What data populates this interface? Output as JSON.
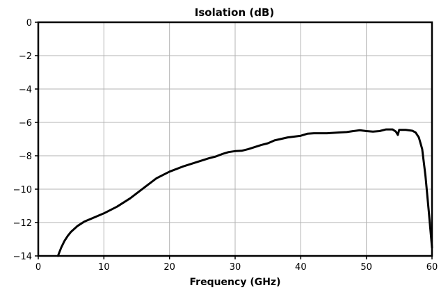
{
  "chart_data": {
    "type": "line",
    "title": "Isolation (dB)",
    "xlabel": "Frequency (GHz)",
    "ylabel": "",
    "xlim": [
      0,
      60
    ],
    "ylim": [
      -14,
      0
    ],
    "xticks": [
      0,
      10,
      20,
      30,
      40,
      50,
      60
    ],
    "yticks": [
      0,
      -2,
      -4,
      -6,
      -8,
      -10,
      -12,
      -14
    ],
    "xtick_labels": [
      "0",
      "10",
      "20",
      "30",
      "40",
      "50",
      "60"
    ],
    "ytick_labels": [
      "0",
      "−2",
      "−4",
      "−6",
      "−8",
      "−10",
      "−12",
      "−14"
    ],
    "grid": true,
    "series": [
      {
        "color": "#000000",
        "x": [
          3,
          3.5,
          4,
          4.5,
          5,
          6,
          7,
          8,
          10,
          12,
          14,
          16,
          18,
          20,
          22,
          24,
          26,
          27,
          28,
          29,
          30,
          31,
          32,
          34,
          35,
          36,
          38,
          40,
          41,
          42,
          44,
          46,
          47,
          48,
          49,
          50,
          51,
          52,
          53,
          54,
          54.5,
          54.8,
          55,
          56,
          57,
          57.5,
          58,
          58.5,
          59,
          59.5,
          60
        ],
        "y": [
          -14,
          -13.5,
          -13.1,
          -12.8,
          -12.55,
          -12.2,
          -11.95,
          -11.78,
          -11.45,
          -11.05,
          -10.55,
          -9.95,
          -9.35,
          -8.95,
          -8.65,
          -8.4,
          -8.15,
          -8.05,
          -7.9,
          -7.78,
          -7.72,
          -7.7,
          -7.6,
          -7.35,
          -7.25,
          -7.08,
          -6.9,
          -6.8,
          -6.68,
          -6.65,
          -6.65,
          -6.6,
          -6.58,
          -6.52,
          -6.47,
          -6.52,
          -6.55,
          -6.52,
          -6.42,
          -6.42,
          -6.55,
          -6.75,
          -6.45,
          -6.45,
          -6.5,
          -6.6,
          -6.9,
          -7.6,
          -9.2,
          -11.3,
          -13.5
        ]
      }
    ]
  }
}
